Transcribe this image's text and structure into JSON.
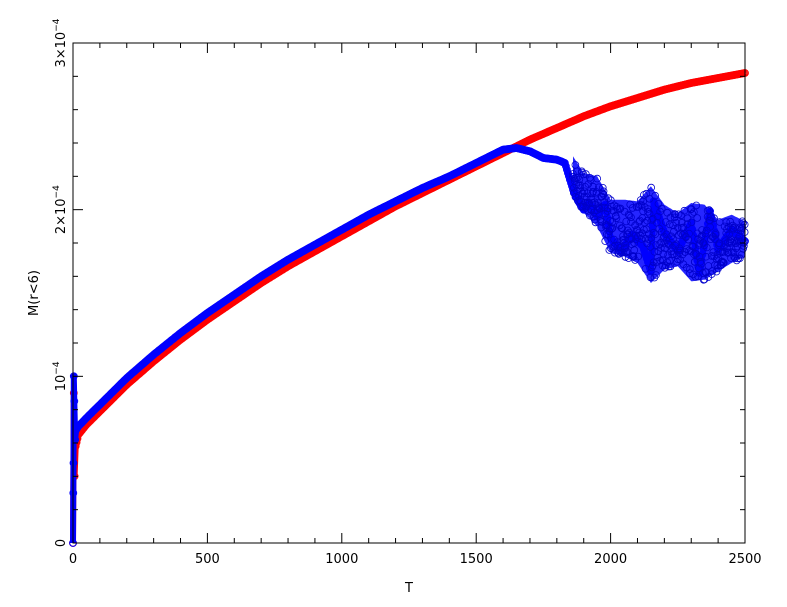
{
  "chart_data": {
    "type": "scatter",
    "xlabel": "T",
    "ylabel": "M(r<6)",
    "xlim": [
      0,
      2500
    ],
    "ylim": [
      0,
      0.0003
    ],
    "grid": false,
    "x_ticks": [
      {
        "value": 0,
        "label": "0"
      },
      {
        "value": 500,
        "label": "500"
      },
      {
        "value": 1000,
        "label": "1000"
      },
      {
        "value": 1500,
        "label": "1500"
      },
      {
        "value": 2000,
        "label": "2000"
      },
      {
        "value": 2500,
        "label": "2500"
      }
    ],
    "y_ticks": [
      {
        "value": 0,
        "mantissa": "0",
        "exponent": ""
      },
      {
        "value": 0.0001,
        "mantissa": "10",
        "exponent": "−4"
      },
      {
        "value": 0.0002,
        "mantissa": "2×10",
        "exponent": "−4"
      },
      {
        "value": 0.0003,
        "mantissa": "3×10",
        "exponent": "−4"
      }
    ],
    "series": [
      {
        "color": "#ff0000",
        "marker": "circle",
        "points": [
          [
            0,
            0
          ],
          [
            3,
            9e-05
          ],
          [
            6,
            4e-05
          ],
          [
            10,
            5.8e-05
          ],
          [
            20,
            6.5e-05
          ],
          [
            50,
            7.1e-05
          ],
          [
            100,
            7.9e-05
          ],
          [
            200,
            9.5e-05
          ],
          [
            300,
            0.000109
          ],
          [
            400,
            0.000122
          ],
          [
            500,
            0.000134
          ],
          [
            600,
            0.000145
          ],
          [
            700,
            0.000156
          ],
          [
            800,
            0.000166
          ],
          [
            900,
            0.000175
          ],
          [
            1000,
            0.000184
          ],
          [
            1100,
            0.000193
          ],
          [
            1200,
            0.000202
          ],
          [
            1300,
            0.00021
          ],
          [
            1400,
            0.000218
          ],
          [
            1500,
            0.000226
          ],
          [
            1600,
            0.000234
          ],
          [
            1700,
            0.000242
          ],
          [
            1800,
            0.000249
          ],
          [
            1900,
            0.000256
          ],
          [
            2000,
            0.000262
          ],
          [
            2100,
            0.000267
          ],
          [
            2200,
            0.000272
          ],
          [
            2300,
            0.000276
          ],
          [
            2400,
            0.000279
          ],
          [
            2500,
            0.000282
          ]
        ]
      },
      {
        "color": "#0000ff",
        "marker": "circle",
        "points": [
          [
            0,
            0
          ],
          [
            1,
            3e-05
          ],
          [
            2,
            4.8e-05
          ],
          [
            3,
            0.0001
          ],
          [
            5,
            8.5e-05
          ],
          [
            8,
            6.2e-05
          ],
          [
            12,
            6.8e-05
          ],
          [
            20,
            7e-05
          ],
          [
            50,
            7.5e-05
          ],
          [
            100,
            8.3e-05
          ],
          [
            200,
            9.9e-05
          ],
          [
            300,
            0.000113
          ],
          [
            400,
            0.000126
          ],
          [
            500,
            0.000138
          ],
          [
            600,
            0.000149
          ],
          [
            700,
            0.00016
          ],
          [
            800,
            0.00017
          ],
          [
            900,
            0.000179
          ],
          [
            1000,
            0.000188
          ],
          [
            1100,
            0.000197
          ],
          [
            1200,
            0.000205
          ],
          [
            1300,
            0.000213
          ],
          [
            1400,
            0.00022
          ],
          [
            1500,
            0.000228
          ],
          [
            1550,
            0.000232
          ],
          [
            1600,
            0.000236
          ],
          [
            1650,
            0.000237
          ],
          [
            1700,
            0.000235
          ],
          [
            1750,
            0.000231
          ],
          [
            1800,
            0.00023
          ],
          [
            1830,
            0.000228
          ],
          [
            1860,
            0.000212
          ],
          [
            1880,
            0.000205
          ],
          [
            1900,
            0.0002
          ],
          [
            1920,
            0.000204
          ],
          [
            1950,
            0.000196
          ],
          [
            1980,
            0.000203
          ],
          [
            2000,
            0.000183
          ],
          [
            2040,
            0.000175
          ],
          [
            2080,
            0.000185
          ],
          [
            2120,
            0.000178
          ],
          [
            2150,
            0.000163
          ],
          [
            2160,
            0.000205
          ],
          [
            2200,
            0.000186
          ],
          [
            2250,
            0.000175
          ],
          [
            2300,
            0.000192
          ],
          [
            2330,
            0.000162
          ],
          [
            2370,
            0.000199
          ],
          [
            2400,
            0.000176
          ],
          [
            2450,
            0.000188
          ],
          [
            2500,
            0.000181
          ]
        ],
        "band_upper": [
          [
            1860,
            0.000232
          ],
          [
            1900,
            0.000222
          ],
          [
            1950,
            0.00022
          ],
          [
            2000,
            0.000206
          ],
          [
            2050,
            0.000206
          ],
          [
            2100,
            0.000205
          ],
          [
            2150,
            0.000214
          ],
          [
            2200,
            0.000203
          ],
          [
            2250,
            0.000198
          ],
          [
            2300,
            0.000204
          ],
          [
            2350,
            0.000203
          ],
          [
            2400,
            0.000194
          ],
          [
            2450,
            0.000197
          ],
          [
            2500,
            0.000193
          ]
        ],
        "band_lower": [
          [
            1860,
            0.000208
          ],
          [
            1900,
            0.000198
          ],
          [
            1950,
            0.00019
          ],
          [
            2000,
            0.000174
          ],
          [
            2050,
            0.000172
          ],
          [
            2100,
            0.000168
          ],
          [
            2150,
            0.000156
          ],
          [
            2200,
            0.000164
          ],
          [
            2250,
            0.000166
          ],
          [
            2300,
            0.000157
          ],
          [
            2350,
            0.000158
          ],
          [
            2400,
            0.000163
          ],
          [
            2450,
            0.000168
          ],
          [
            2500,
            0.000172
          ]
        ]
      }
    ]
  }
}
